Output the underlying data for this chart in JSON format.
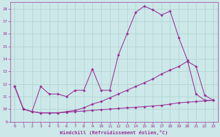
{
  "xlabel": "Windchill (Refroidissement éolien,°C)",
  "background_color": "#cce8e8",
  "grid_color": "#b0d0d0",
  "line_color": "#993399",
  "marker": "D",
  "markersize": 2.2,
  "linewidth": 0.8,
  "xlim": [
    -0.5,
    23.5
  ],
  "ylim": [
    9,
    18.5
  ],
  "yticks": [
    9,
    10,
    11,
    12,
    13,
    14,
    15,
    16,
    17,
    18
  ],
  "xticks": [
    0,
    1,
    2,
    3,
    4,
    5,
    6,
    7,
    8,
    9,
    10,
    11,
    12,
    13,
    14,
    15,
    16,
    17,
    18,
    19,
    20,
    21,
    22,
    23
  ],
  "line1_x": [
    0,
    1,
    2,
    3,
    4,
    5,
    6,
    7,
    8,
    9,
    10,
    11,
    12,
    13,
    14,
    15,
    16,
    17,
    18,
    19,
    20,
    21,
    22,
    23
  ],
  "line1_y": [
    11.8,
    10.0,
    9.8,
    11.8,
    11.2,
    11.2,
    11.0,
    11.5,
    11.5,
    13.2,
    11.5,
    11.5,
    14.3,
    16.0,
    17.7,
    18.2,
    17.9,
    17.5,
    17.8,
    15.7,
    13.9,
    11.2,
    10.7,
    10.7
  ],
  "line2_x": [
    0,
    1,
    2,
    3,
    4,
    5,
    6,
    7,
    8,
    9,
    10,
    11,
    12,
    13,
    14,
    15,
    16,
    17,
    18,
    19,
    20,
    21,
    22,
    23
  ],
  "line2_y": [
    11.8,
    10.0,
    9.8,
    9.7,
    9.7,
    9.7,
    9.8,
    9.9,
    10.1,
    10.4,
    10.6,
    10.9,
    11.2,
    11.5,
    11.8,
    12.1,
    12.4,
    12.8,
    13.1,
    13.4,
    13.8,
    13.4,
    11.1,
    10.7
  ],
  "line3_x": [
    0,
    1,
    2,
    3,
    4,
    5,
    6,
    7,
    8,
    9,
    10,
    11,
    12,
    13,
    14,
    15,
    16,
    17,
    18,
    19,
    20,
    21,
    22,
    23
  ],
  "line3_y": [
    11.8,
    10.0,
    9.8,
    9.7,
    9.7,
    9.7,
    9.75,
    9.8,
    9.85,
    9.9,
    9.95,
    10.0,
    10.05,
    10.1,
    10.15,
    10.2,
    10.25,
    10.3,
    10.4,
    10.5,
    10.55,
    10.6,
    10.65,
    10.7
  ]
}
